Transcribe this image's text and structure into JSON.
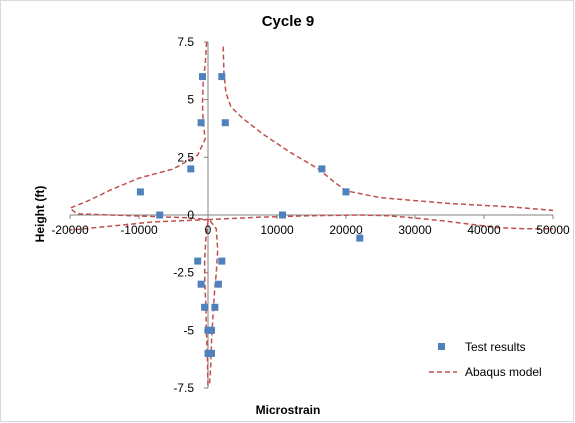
{
  "chart_data": {
    "type": "scatter",
    "title": "Cycle 9",
    "xlabel": "Microstrain",
    "ylabel": "Height (ft)",
    "xlim": [
      -20000,
      50000
    ],
    "ylim": [
      -7.5,
      7.5
    ],
    "x_ticks": [
      -20000,
      -10000,
      0,
      10000,
      20000,
      30000,
      40000,
      50000
    ],
    "y_ticks": [
      7.5,
      5,
      2.5,
      0,
      -2.5,
      -5,
      -7.5
    ],
    "x_tick_labels": [
      "-20000",
      "-10000",
      "0",
      "10000",
      "20000",
      "30000",
      "40000",
      "50000"
    ],
    "y_tick_labels": [
      "7.5",
      "5",
      "2.5",
      "0",
      "-2.5",
      "-5",
      "-7.5"
    ],
    "grid": false,
    "legend_position": "bottom-right",
    "series": [
      {
        "name": "Test results",
        "kind": "markers",
        "color": "#4f81bd",
        "points": [
          [
            -800,
            6.0
          ],
          [
            2000,
            6.0
          ],
          [
            -1000,
            4.0
          ],
          [
            2500,
            4.0
          ],
          [
            -2500,
            2.0
          ],
          [
            16500,
            2.0
          ],
          [
            -9800,
            1.0
          ],
          [
            20000,
            1.0
          ],
          [
            -7000,
            0.0
          ],
          [
            10800,
            0.0
          ],
          [
            22000,
            -1.0
          ],
          [
            -1500,
            -2.0
          ],
          [
            2000,
            -2.0
          ],
          [
            -1000,
            -3.0
          ],
          [
            1500,
            -3.0
          ],
          [
            -500,
            -4.0
          ],
          [
            1000,
            -4.0
          ],
          [
            0,
            -5.0
          ],
          [
            500,
            -5.0
          ],
          [
            0,
            -6.0
          ],
          [
            500,
            -6.0
          ]
        ]
      },
      {
        "name": "Abaqus model",
        "kind": "line",
        "color": "#c0504d",
        "dash": true,
        "curves": [
          [
            [
              -200,
              7.5
            ],
            [
              -400,
              6.5
            ],
            [
              -700,
              5.8
            ],
            [
              -800,
              4.8
            ],
            [
              -700,
              4.0
            ],
            [
              -400,
              3.3
            ],
            [
              -1500,
              2.6
            ],
            [
              -5000,
              2.0
            ],
            [
              -10000,
              1.6
            ],
            [
              -14000,
              1.1
            ],
            [
              -17500,
              0.6
            ],
            [
              -20000,
              0.3
            ],
            [
              -19000,
              0.05
            ],
            [
              -12000,
              -0.02
            ],
            [
              -3000,
              -0.12
            ],
            [
              0,
              -0.2
            ]
          ],
          [
            [
              2200,
              7.3
            ],
            [
              2300,
              6.2
            ],
            [
              2600,
              5.3
            ],
            [
              3300,
              4.7
            ],
            [
              5000,
              4.2
            ],
            [
              8000,
              3.5
            ],
            [
              12000,
              2.7
            ],
            [
              16000,
              2.0
            ],
            [
              18000,
              1.5
            ],
            [
              20000,
              1.05
            ],
            [
              25000,
              0.75
            ],
            [
              35000,
              0.5
            ],
            [
              44000,
              0.35
            ],
            [
              50000,
              0.2
            ]
          ],
          [
            [
              0,
              -0.2
            ],
            [
              7000,
              -0.1
            ],
            [
              15000,
              -0.03
            ],
            [
              22000,
              0.0
            ],
            [
              26000,
              -0.03
            ],
            [
              30000,
              -0.13
            ],
            [
              34000,
              -0.25
            ],
            [
              38000,
              -0.4
            ],
            [
              42000,
              -0.55
            ],
            [
              46000,
              -0.6
            ],
            [
              50000,
              -0.6
            ]
          ],
          [
            [
              0,
              -0.2
            ],
            [
              -8000,
              -0.3
            ],
            [
              -13000,
              -0.45
            ],
            [
              -18000,
              -0.6
            ],
            [
              -20000,
              -0.65
            ]
          ],
          [
            [
              0,
              -0.25
            ],
            [
              -300,
              -1.0
            ],
            [
              -500,
              -2.0
            ],
            [
              -450,
              -3.0
            ],
            [
              -300,
              -4.0
            ],
            [
              -250,
              -5.0
            ],
            [
              -100,
              -6.0
            ],
            [
              0,
              -7.5
            ]
          ],
          [
            [
              300,
              -0.25
            ],
            [
              1200,
              -0.6
            ],
            [
              1400,
              -1.5
            ],
            [
              1200,
              -2.5
            ],
            [
              900,
              -3.5
            ],
            [
              700,
              -4.5
            ],
            [
              500,
              -5.5
            ],
            [
              400,
              -6.5
            ],
            [
              200,
              -7.4
            ]
          ]
        ]
      }
    ]
  }
}
